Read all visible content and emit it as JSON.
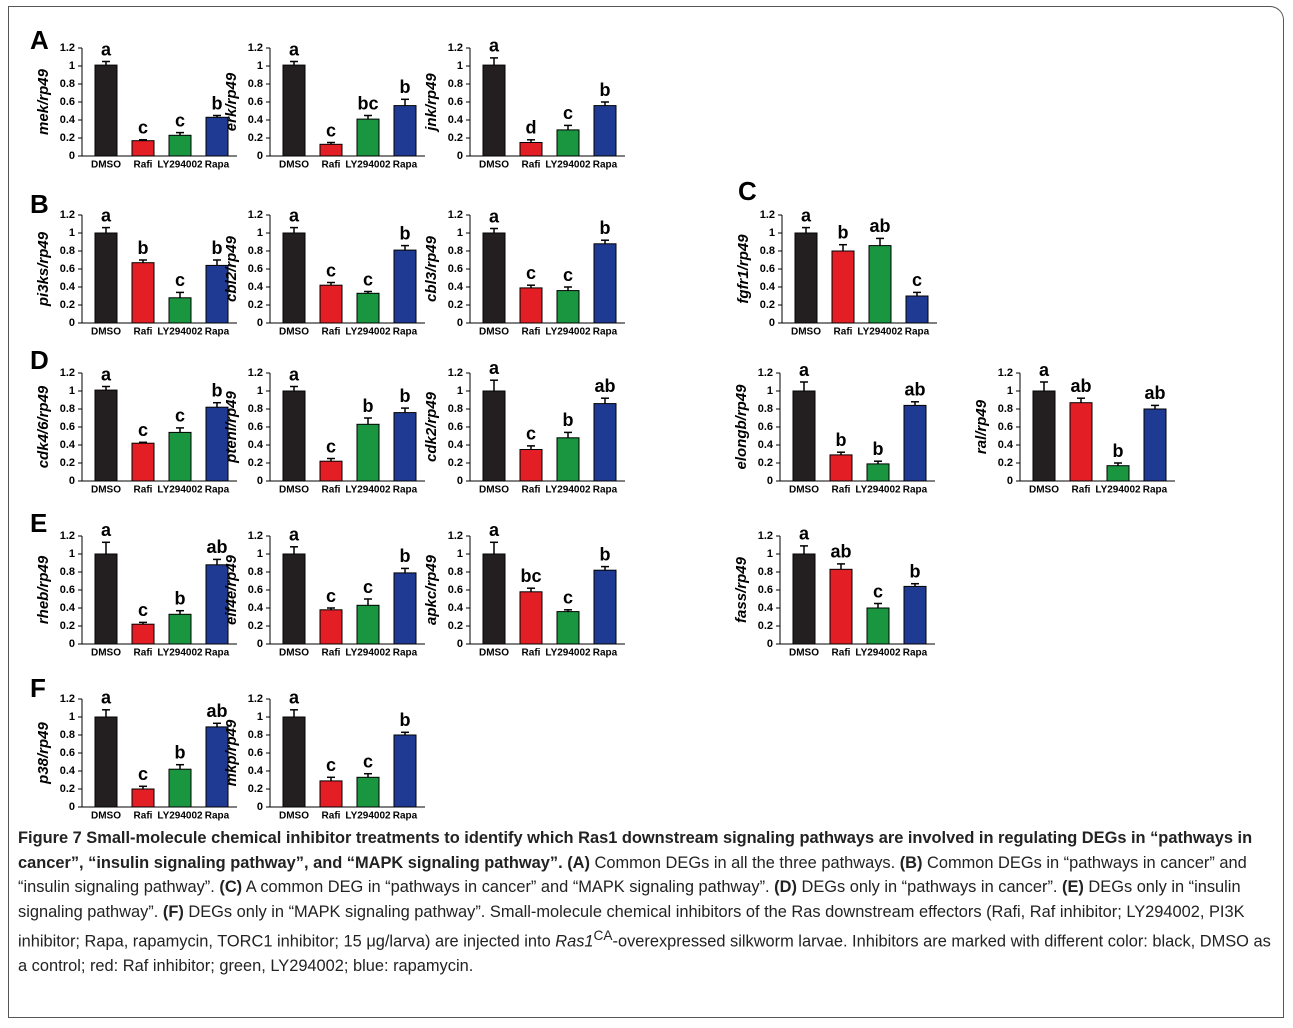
{
  "panels": [
    "A",
    "B",
    "C",
    "D",
    "E",
    "F"
  ],
  "chart_data": [
    {
      "type": "bar",
      "ylabel": "mek/rp49",
      "categories": [
        "DMSO",
        "Rafi",
        "LY294002",
        "Rapa"
      ],
      "values": [
        1.01,
        0.17,
        0.23,
        0.43
      ],
      "errors": [
        0.04,
        0.01,
        0.03,
        0.02
      ],
      "letters": [
        "a",
        "c",
        "c",
        "b"
      ],
      "colors": [
        "#231f20",
        "#e31e24",
        "#1a9641",
        "#1f3a93"
      ],
      "ylim": [
        0,
        1.2
      ],
      "yticks": [
        0,
        0.2,
        0.4,
        0.6,
        0.8,
        1,
        1.2
      ]
    },
    {
      "type": "bar",
      "ylabel": "erk/rp49",
      "categories": [
        "DMSO",
        "Rafi",
        "LY294002",
        "Rapa"
      ],
      "values": [
        1.01,
        0.13,
        0.41,
        0.56
      ],
      "errors": [
        0.04,
        0.02,
        0.04,
        0.07
      ],
      "letters": [
        "a",
        "c",
        "bc",
        "b"
      ],
      "colors": [
        "#231f20",
        "#e31e24",
        "#1a9641",
        "#1f3a93"
      ],
      "ylim": [
        0,
        1.2
      ],
      "yticks": [
        0,
        0.2,
        0.4,
        0.6,
        0.8,
        1,
        1.2
      ]
    },
    {
      "type": "bar",
      "ylabel": "jnk/rp49",
      "categories": [
        "DMSO",
        "Rafi",
        "LY294002",
        "Rapa"
      ],
      "values": [
        1.01,
        0.15,
        0.29,
        0.56
      ],
      "errors": [
        0.08,
        0.03,
        0.05,
        0.04
      ],
      "letters": [
        "a",
        "d",
        "c",
        "b"
      ],
      "colors": [
        "#231f20",
        "#e31e24",
        "#1a9641",
        "#1f3a93"
      ],
      "ylim": [
        0,
        1.2
      ],
      "yticks": [
        0,
        0.2,
        0.4,
        0.6,
        0.8,
        1,
        1.2
      ]
    },
    {
      "type": "bar",
      "ylabel": "pi3ks/rp49",
      "categories": [
        "DMSO",
        "Rafi",
        "LY294002",
        "Rapa"
      ],
      "values": [
        1.0,
        0.67,
        0.28,
        0.64
      ],
      "errors": [
        0.06,
        0.03,
        0.06,
        0.06
      ],
      "letters": [
        "a",
        "b",
        "c",
        "b"
      ],
      "colors": [
        "#231f20",
        "#e31e24",
        "#1a9641",
        "#1f3a93"
      ],
      "ylim": [
        0,
        1.2
      ],
      "yticks": [
        0,
        0.2,
        0.4,
        0.6,
        0.8,
        1,
        1.2
      ]
    },
    {
      "type": "bar",
      "ylabel": "cbl2/rp49",
      "categories": [
        "DMSO",
        "Rafi",
        "LY294002",
        "Rapa"
      ],
      "values": [
        1.0,
        0.42,
        0.33,
        0.81
      ],
      "errors": [
        0.06,
        0.03,
        0.02,
        0.05
      ],
      "letters": [
        "a",
        "c",
        "c",
        "b"
      ],
      "colors": [
        "#231f20",
        "#e31e24",
        "#1a9641",
        "#1f3a93"
      ],
      "ylim": [
        0,
        1.2
      ],
      "yticks": [
        0,
        0.2,
        0.4,
        0.6,
        0.8,
        1,
        1.2
      ]
    },
    {
      "type": "bar",
      "ylabel": "cbl3/rp49",
      "categories": [
        "DMSO",
        "Rafi",
        "LY294002",
        "Rapa"
      ],
      "values": [
        1.0,
        0.39,
        0.36,
        0.88
      ],
      "errors": [
        0.05,
        0.03,
        0.04,
        0.04
      ],
      "letters": [
        "a",
        "c",
        "c",
        "b"
      ],
      "colors": [
        "#231f20",
        "#e31e24",
        "#1a9641",
        "#1f3a93"
      ],
      "ylim": [
        0,
        1.2
      ],
      "yticks": [
        0,
        0.2,
        0.4,
        0.6,
        0.8,
        1,
        1.2
      ]
    },
    {
      "type": "bar",
      "ylabel": "fgfr1/rp49",
      "categories": [
        "DMSO",
        "Rafi",
        "LY294002",
        "Rapa"
      ],
      "values": [
        1.0,
        0.8,
        0.86,
        0.3
      ],
      "errors": [
        0.06,
        0.07,
        0.08,
        0.04
      ],
      "letters": [
        "a",
        "b",
        "ab",
        "c"
      ],
      "colors": [
        "#231f20",
        "#e31e24",
        "#1a9641",
        "#1f3a93"
      ],
      "ylim": [
        0,
        1.2
      ],
      "yticks": [
        0,
        0.2,
        0.4,
        0.6,
        0.8,
        1,
        1.2
      ]
    },
    {
      "type": "bar",
      "ylabel": "cdk4/6/rp49",
      "categories": [
        "DMSO",
        "Rafi",
        "LY294002",
        "Rapa"
      ],
      "values": [
        1.01,
        0.42,
        0.54,
        0.82
      ],
      "errors": [
        0.04,
        0.01,
        0.05,
        0.05
      ],
      "letters": [
        "a",
        "c",
        "c",
        "b"
      ],
      "colors": [
        "#231f20",
        "#e31e24",
        "#1a9641",
        "#1f3a93"
      ],
      "ylim": [
        0,
        1.2
      ],
      "yticks": [
        0,
        0.2,
        0.4,
        0.6,
        0.8,
        1,
        1.2
      ]
    },
    {
      "type": "bar",
      "ylabel": "ptenl/rp49",
      "categories": [
        "DMSO",
        "Rafi",
        "LY294002",
        "Rapa"
      ],
      "values": [
        1.0,
        0.22,
        0.63,
        0.76
      ],
      "errors": [
        0.05,
        0.03,
        0.07,
        0.05
      ],
      "letters": [
        "a",
        "c",
        "b",
        "b"
      ],
      "colors": [
        "#231f20",
        "#e31e24",
        "#1a9641",
        "#1f3a93"
      ],
      "ylim": [
        0,
        1.2
      ],
      "yticks": [
        0,
        0.2,
        0.4,
        0.6,
        0.8,
        1,
        1.2
      ]
    },
    {
      "type": "bar",
      "ylabel": "cdk2/rp49",
      "categories": [
        "DMSO",
        "Rafi",
        "LY294002",
        "Rapa"
      ],
      "values": [
        1.0,
        0.35,
        0.48,
        0.86
      ],
      "errors": [
        0.12,
        0.04,
        0.06,
        0.06
      ],
      "letters": [
        "a",
        "c",
        "b",
        "ab"
      ],
      "colors": [
        "#231f20",
        "#e31e24",
        "#1a9641",
        "#1f3a93"
      ],
      "ylim": [
        0,
        1.2
      ],
      "yticks": [
        0,
        0.2,
        0.4,
        0.6,
        0.8,
        1,
        1.2
      ]
    },
    {
      "type": "bar",
      "ylabel": "elongb/rp49",
      "categories": [
        "DMSO",
        "Rafi",
        "LY294002",
        "Rapa"
      ],
      "values": [
        1.0,
        0.29,
        0.19,
        0.84
      ],
      "errors": [
        0.1,
        0.03,
        0.03,
        0.04
      ],
      "letters": [
        "a",
        "b",
        "b",
        "ab"
      ],
      "colors": [
        "#231f20",
        "#e31e24",
        "#1a9641",
        "#1f3a93"
      ],
      "ylim": [
        0,
        1.2
      ],
      "yticks": [
        0,
        0.2,
        0.4,
        0.6,
        0.8,
        1,
        1.2
      ]
    },
    {
      "type": "bar",
      "ylabel": "ral/rp49",
      "categories": [
        "DMSO",
        "Rafi",
        "LY294002",
        "Rapa"
      ],
      "values": [
        1.0,
        0.87,
        0.17,
        0.8
      ],
      "errors": [
        0.1,
        0.05,
        0.03,
        0.04
      ],
      "letters": [
        "a",
        "ab",
        "b",
        "ab"
      ],
      "colors": [
        "#231f20",
        "#e31e24",
        "#1a9641",
        "#1f3a93"
      ],
      "ylim": [
        0,
        1.2
      ],
      "yticks": [
        0,
        0.2,
        0.4,
        0.6,
        0.8,
        1,
        1.2
      ]
    },
    {
      "type": "bar",
      "ylabel": "rheb/rp49",
      "categories": [
        "DMSO",
        "Rafi",
        "LY294002",
        "Rapa"
      ],
      "values": [
        1.0,
        0.22,
        0.33,
        0.88
      ],
      "errors": [
        0.13,
        0.02,
        0.04,
        0.06
      ],
      "letters": [
        "a",
        "c",
        "b",
        "ab"
      ],
      "colors": [
        "#231f20",
        "#e31e24",
        "#1a9641",
        "#1f3a93"
      ],
      "ylim": [
        0,
        1.2
      ],
      "yticks": [
        0,
        0.2,
        0.4,
        0.6,
        0.8,
        1,
        1.2
      ]
    },
    {
      "type": "bar",
      "ylabel": "eif4e/rp49",
      "categories": [
        "DMSO",
        "Rafi",
        "LY294002",
        "Rapa"
      ],
      "values": [
        1.0,
        0.38,
        0.43,
        0.79
      ],
      "errors": [
        0.08,
        0.02,
        0.07,
        0.05
      ],
      "letters": [
        "a",
        "c",
        "c",
        "b"
      ],
      "colors": [
        "#231f20",
        "#e31e24",
        "#1a9641",
        "#1f3a93"
      ],
      "ylim": [
        0,
        1.2
      ],
      "yticks": [
        0,
        0.2,
        0.4,
        0.6,
        0.8,
        1,
        1.2
      ]
    },
    {
      "type": "bar",
      "ylabel": "apkc/rp49",
      "categories": [
        "DMSO",
        "Rafi",
        "LY294002",
        "Rapa"
      ],
      "values": [
        1.0,
        0.58,
        0.36,
        0.82
      ],
      "errors": [
        0.13,
        0.04,
        0.02,
        0.04
      ],
      "letters": [
        "a",
        "bc",
        "c",
        "b"
      ],
      "colors": [
        "#231f20",
        "#e31e24",
        "#1a9641",
        "#1f3a93"
      ],
      "ylim": [
        0,
        1.2
      ],
      "yticks": [
        0,
        0.2,
        0.4,
        0.6,
        0.8,
        1,
        1.2
      ]
    },
    {
      "type": "bar",
      "ylabel": "fass/rp49",
      "categories": [
        "DMSO",
        "Rafi",
        "LY294002",
        "Rapa"
      ],
      "values": [
        1.0,
        0.83,
        0.4,
        0.64
      ],
      "errors": [
        0.09,
        0.06,
        0.05,
        0.03
      ],
      "letters": [
        "a",
        "ab",
        "c",
        "b"
      ],
      "colors": [
        "#231f20",
        "#e31e24",
        "#1a9641",
        "#1f3a93"
      ],
      "ylim": [
        0,
        1.2
      ],
      "yticks": [
        0,
        0.2,
        0.4,
        0.6,
        0.8,
        1,
        1.2
      ]
    },
    {
      "type": "bar",
      "ylabel": "p38/rp49",
      "categories": [
        "DMSO",
        "Rafi",
        "LY294002",
        "Rapa"
      ],
      "values": [
        1.0,
        0.2,
        0.42,
        0.89
      ],
      "errors": [
        0.08,
        0.03,
        0.05,
        0.04
      ],
      "letters": [
        "a",
        "c",
        "b",
        "ab"
      ],
      "colors": [
        "#231f20",
        "#e31e24",
        "#1a9641",
        "#1f3a93"
      ],
      "ylim": [
        0,
        1.2
      ],
      "yticks": [
        0,
        0.2,
        0.4,
        0.6,
        0.8,
        1,
        1.2
      ]
    },
    {
      "type": "bar",
      "ylabel": "mkp/rp49",
      "categories": [
        "DMSO",
        "Rafi",
        "LY294002",
        "Rapa"
      ],
      "values": [
        1.0,
        0.29,
        0.33,
        0.8
      ],
      "errors": [
        0.08,
        0.04,
        0.04,
        0.03
      ],
      "letters": [
        "a",
        "c",
        "c",
        "b"
      ],
      "colors": [
        "#231f20",
        "#e31e24",
        "#1a9641",
        "#1f3a93"
      ],
      "ylim": [
        0,
        1.2
      ],
      "yticks": [
        0,
        0.2,
        0.4,
        0.6,
        0.8,
        1,
        1.2
      ]
    }
  ],
  "caption": {
    "title": "Figure 7 Small-molecule chemical inhibitor treatments to identify which Ras1 downstream signaling pathways are involved in regulating DEGs in “pathways in cancer”, “insulin signaling pathway”, and “MAPK signaling pathway”.",
    "parts": [
      "(A)",
      " Common DEGs in all the three pathways. ",
      "(B)",
      " Common DEGs in “pathways in cancer” and “insulin signaling pathway”. ",
      "(C)",
      " A common DEG in “pathways in cancer” and “MAPK signaling pathway”. ",
      "(D)",
      " DEGs only in “pathways in cancer”. ",
      "(E)",
      " DEGs only in “insulin signaling pathway”. ",
      "(F)",
      " DEGs only in “MAPK signaling pathway”. Small-molecule chemical inhibitors of the Ras downstream effectors (Rafi, Raf inhibitor; LY294002, PI3K inhibitor; Rapa, rapamycin, TORC1 inhibitor; 15 μg/larva) are injected into ",
      "Ras1",
      "CA",
      "-overexpressed silkworm larvae. Inhibitors are marked with different color: black, DMSO as a control; red: Raf inhibitor; green, LY294002; blue: rapamycin."
    ]
  }
}
